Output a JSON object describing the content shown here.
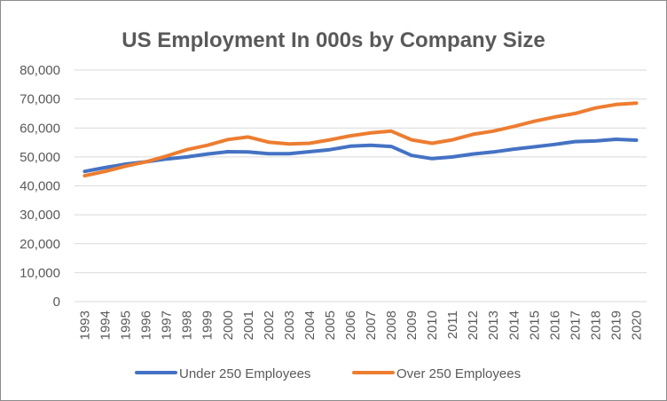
{
  "chart_data": {
    "type": "line",
    "title": "US Employment In 000s by Company Size",
    "xlabel": "",
    "ylabel": "",
    "ylim": [
      0,
      80000
    ],
    "y_ticks": [
      0,
      10000,
      20000,
      30000,
      40000,
      50000,
      60000,
      70000,
      80000
    ],
    "y_tick_labels": [
      "0",
      "10,000",
      "20,000",
      "30,000",
      "40,000",
      "50,000",
      "60,000",
      "70,000",
      "80,000"
    ],
    "grid": true,
    "legend": "bottom",
    "categories": [
      "1993",
      "1994",
      "1995",
      "1996",
      "1997",
      "1998",
      "1999",
      "2000",
      "2001",
      "2002",
      "2003",
      "2004",
      "2005",
      "2006",
      "2007",
      "2008",
      "2009",
      "2010",
      "2011",
      "2012",
      "2013",
      "2014",
      "2015",
      "2016",
      "2017",
      "2018",
      "2019",
      "2020"
    ],
    "series": [
      {
        "name": "Under 250 Employees",
        "color": "#4472C4",
        "values": [
          45000,
          46300,
          47500,
          48300,
          49300,
          50000,
          51000,
          51800,
          51700,
          51100,
          51100,
          51800,
          52500,
          53700,
          54000,
          53600,
          50500,
          49400,
          50000,
          51000,
          51700,
          52700,
          53500,
          54300,
          55300,
          55500,
          56100,
          55800
        ]
      },
      {
        "name": "Over 250 Employees",
        "color": "#ED7D31",
        "values": [
          43500,
          45000,
          46800,
          48300,
          50300,
          52500,
          54000,
          56000,
          56900,
          55100,
          54500,
          54700,
          55900,
          57300,
          58300,
          58900,
          55900,
          54700,
          55900,
          57800,
          58900,
          60500,
          62300,
          63800,
          65000,
          66900,
          68100,
          68600
        ]
      }
    ]
  }
}
